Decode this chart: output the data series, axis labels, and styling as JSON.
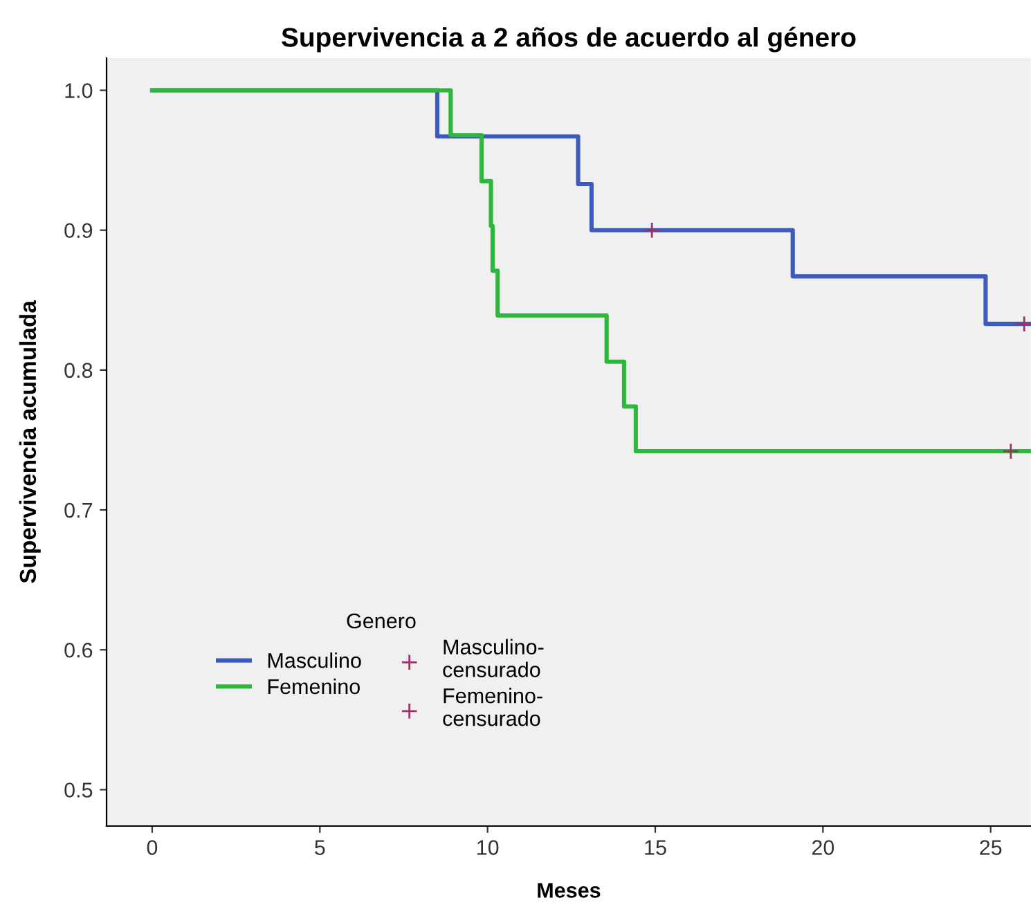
{
  "chart_data": {
    "type": "step",
    "title": "Supervivencia a 2 años de acuerdo al género",
    "xlabel": "Meses",
    "ylabel": "Supervivencia acumulada",
    "legend_title": "Genero",
    "legend": "bottom left",
    "grid": false,
    "xlim": [
      -1.36,
      26.2
    ],
    "ylim": [
      0.474,
      1.023
    ],
    "xticks": [
      0,
      5,
      10,
      15,
      20,
      25
    ],
    "yticks": [
      0.5,
      0.6,
      0.7,
      0.8,
      0.9,
      {
        "value": 1,
        "label": "1.0"
      }
    ],
    "series": [
      {
        "name": "Masculino",
        "color": "#3e5aba",
        "x": [
          0,
          8.5,
          12.7,
          13.1,
          19.1,
          24.85,
          26.2
        ],
        "values": [
          1.0,
          0.967,
          0.933,
          0.9,
          0.867,
          0.833,
          0.833
        ]
      },
      {
        "name": "Femenino",
        "color": "#2db83d",
        "x": [
          0,
          8.9,
          9.82,
          10.1,
          10.15,
          10.3,
          13.55,
          14.07,
          14.42,
          26.2
        ],
        "values": [
          1.0,
          0.968,
          0.935,
          0.903,
          0.871,
          0.839,
          0.806,
          0.774,
          0.742,
          0.742
        ]
      },
      {
        "name": "Masculino-censurado",
        "type": "scatter",
        "marker": "cross",
        "color": "#a0306a",
        "x": [
          14.9,
          26.0
        ],
        "values": [
          0.9,
          0.833
        ]
      },
      {
        "name": "Femenino-censurado",
        "type": "scatter",
        "marker": "cross",
        "color": "#a0306a",
        "x": [
          25.6
        ],
        "values": [
          0.742
        ]
      }
    ]
  }
}
